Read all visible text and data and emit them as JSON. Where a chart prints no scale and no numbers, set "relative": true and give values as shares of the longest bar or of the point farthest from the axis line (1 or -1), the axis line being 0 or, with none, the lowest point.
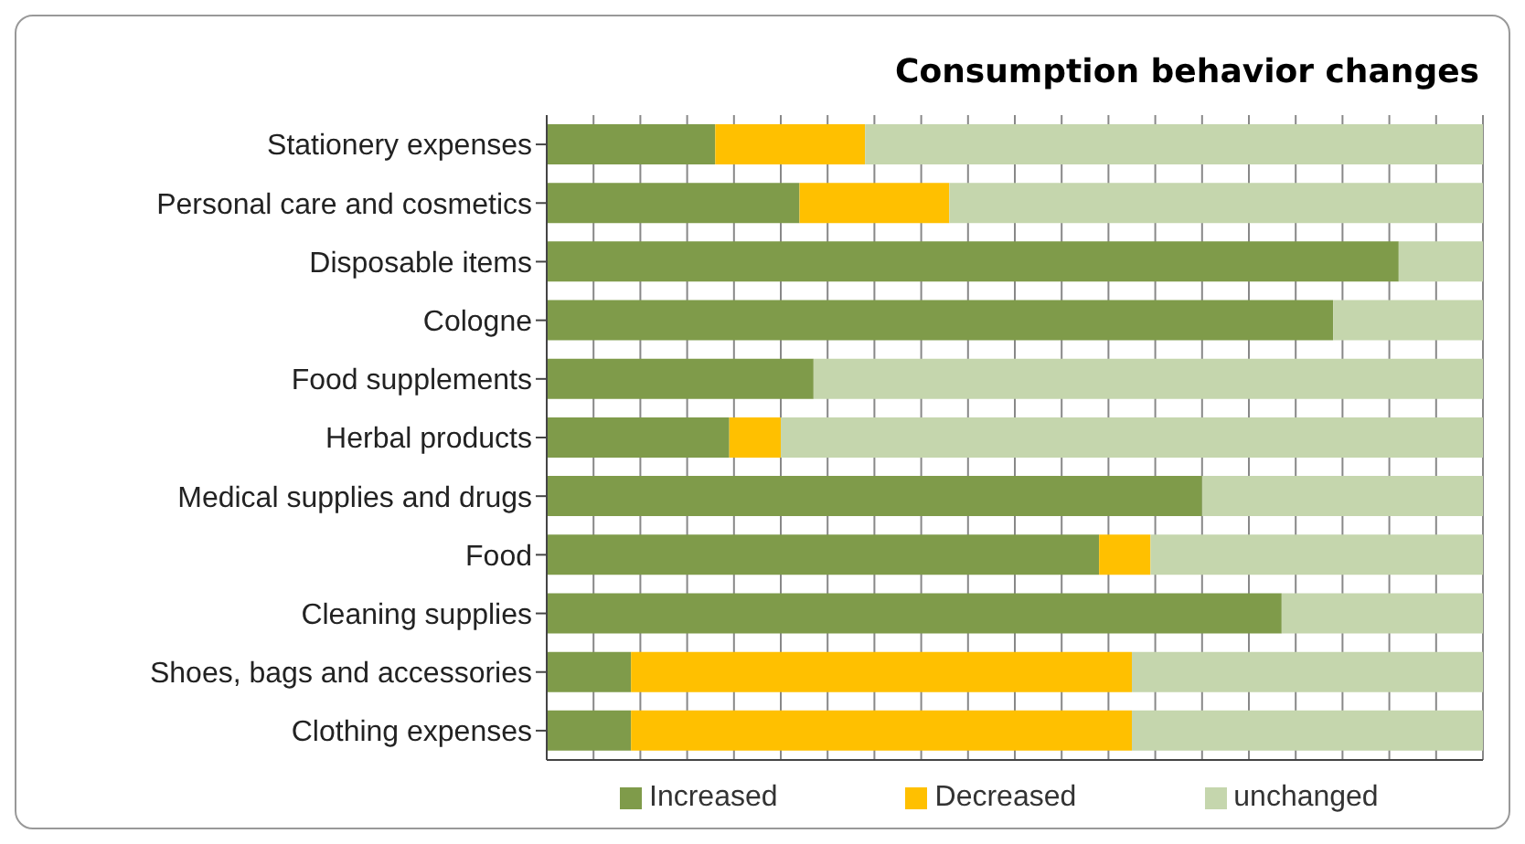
{
  "chart_data": {
    "type": "bar",
    "orientation": "horizontal",
    "stacked": true,
    "relative": true,
    "title": "Consumption behavior changes",
    "categories": [
      "Stationery expenses",
      "Personal care and cosmetics",
      "Disposable items",
      "Cologne",
      "Food supplements",
      "Herbal products",
      "Medical supplies and drugs",
      "Food",
      "Cleaning supplies",
      "Shoes, bags and accessories",
      "Clothing expenses"
    ],
    "series": [
      {
        "name": "Increased",
        "color": "#7f9b4a",
        "values": [
          0.18,
          0.27,
          0.91,
          0.84,
          0.285,
          0.195,
          0.7,
          0.59,
          0.785,
          0.09,
          0.09
        ]
      },
      {
        "name": "Decreased",
        "color": "#ffc000",
        "values": [
          0.16,
          0.16,
          0,
          0,
          0,
          0.055,
          0,
          0.055,
          0,
          0.535,
          0.535
        ]
      },
      {
        "name": "unchanged",
        "color": "#c5d6ad",
        "values": [
          0.66,
          0.57,
          0.09,
          0.16,
          0.715,
          0.75,
          0.3,
          0.355,
          0.215,
          0.375,
          0.375
        ]
      }
    ],
    "grid": "x",
    "legend": "bottom"
  }
}
